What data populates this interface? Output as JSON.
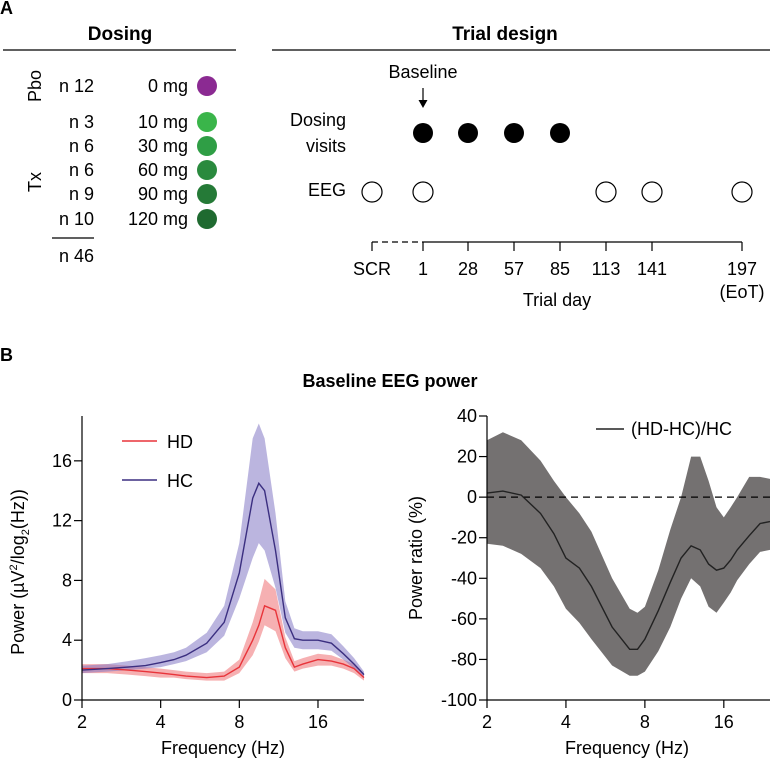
{
  "panel_a": {
    "label": "A",
    "dosing": {
      "title": "Dosing",
      "group_pbo": "Pbo",
      "group_tx": "Tx",
      "rows": [
        {
          "n": "n 12",
          "dose": "0 mg",
          "color": "#8b2a92"
        },
        {
          "n": "n 3",
          "dose": "10 mg",
          "color": "#3ab54a"
        },
        {
          "n": "n 6",
          "dose": "30 mg",
          "color": "#2f9e45"
        },
        {
          "n": "n 6",
          "dose": "60 mg",
          "color": "#2a8a3e"
        },
        {
          "n": "n 9",
          "dose": "90 mg",
          "color": "#257a37"
        },
        {
          "n": "n 10",
          "dose": "120 mg",
          "color": "#1f6a30"
        }
      ],
      "total": "n 46"
    },
    "trial_design": {
      "title": "Trial design",
      "baseline_label": "Baseline",
      "dosing_visits_line1": "Dosing",
      "dosing_visits_line2": "visits",
      "eeg_label": "EEG",
      "days": [
        "SCR",
        "1",
        "28",
        "57",
        "85",
        "113",
        "141",
        "197"
      ],
      "eot_label": "(EoT)",
      "axis_title": "Trial day",
      "dosing_days": [
        "1",
        "28",
        "57",
        "85"
      ],
      "eeg_days": [
        "SCR",
        "1",
        "113",
        "141",
        "197"
      ]
    }
  },
  "panel_b": {
    "label": "B",
    "title": "Baseline EEG power"
  },
  "chart_data": [
    {
      "type": "line",
      "x_scale": "log2",
      "x": [
        2,
        2.5,
        3,
        3.5,
        4,
        4.5,
        5,
        6,
        7,
        8,
        9,
        9.5,
        10,
        11,
        12,
        13,
        14,
        16,
        18,
        20,
        22,
        24
      ],
      "series": [
        {
          "name": "HD",
          "color": "#e8343a",
          "values": [
            2.1,
            2.1,
            2.0,
            1.9,
            1.8,
            1.7,
            1.6,
            1.5,
            1.6,
            2.2,
            4.0,
            5.0,
            6.3,
            6.0,
            3.5,
            2.2,
            2.4,
            2.7,
            2.6,
            2.4,
            2.1,
            1.5
          ],
          "lower": [
            1.8,
            1.8,
            1.7,
            1.6,
            1.5,
            1.5,
            1.4,
            1.3,
            1.3,
            1.8,
            3.0,
            3.9,
            5.0,
            4.6,
            2.8,
            1.9,
            2.1,
            2.3,
            2.3,
            2.1,
            1.8,
            1.3
          ],
          "upper": [
            2.4,
            2.4,
            2.3,
            2.2,
            2.1,
            2.0,
            1.9,
            1.8,
            1.9,
            2.7,
            5.2,
            6.6,
            8.1,
            7.4,
            4.2,
            2.6,
            2.8,
            3.1,
            3.0,
            2.7,
            2.4,
            1.7
          ]
        },
        {
          "name": "HC",
          "color": "#3b2f80",
          "values": [
            2.0,
            2.1,
            2.2,
            2.3,
            2.5,
            2.7,
            3.0,
            3.8,
            5.2,
            8.5,
            13.5,
            14.5,
            14.0,
            10.0,
            5.5,
            4.1,
            4.0,
            4.0,
            3.8,
            3.1,
            2.4,
            1.7
          ],
          "lower": [
            1.8,
            1.9,
            2.0,
            2.1,
            2.2,
            2.4,
            2.6,
            3.2,
            4.3,
            6.8,
            9.5,
            10.5,
            10.0,
            7.5,
            4.5,
            3.5,
            3.4,
            3.4,
            3.3,
            2.7,
            2.1,
            1.5
          ],
          "upper": [
            2.3,
            2.4,
            2.6,
            2.8,
            3.0,
            3.2,
            3.5,
            4.5,
            6.3,
            10.5,
            17.5,
            18.5,
            17.5,
            12.5,
            6.6,
            4.8,
            4.6,
            4.6,
            4.4,
            3.6,
            2.8,
            1.9
          ]
        }
      ],
      "xlabel": "Frequency (Hz)",
      "ylabel_pre": "Power (µV",
      "ylabel_sup1": "2",
      "ylabel_mid": "/log",
      "ylabel_sub": "2",
      "ylabel_post": "(Hz))",
      "xticks": [
        "2",
        "4",
        "8",
        "16"
      ],
      "yticks": [
        "0",
        "4",
        "8",
        "12",
        "16"
      ],
      "xlim": [
        2,
        24
      ],
      "ylim": [
        0,
        19
      ],
      "legend": [
        "HD",
        "HC"
      ]
    },
    {
      "type": "line",
      "x_scale": "log2",
      "x": [
        2,
        2.3,
        2.7,
        3.2,
        3.6,
        4,
        4.5,
        5,
        6,
        7,
        7.5,
        8,
        9,
        10,
        11,
        12,
        13,
        14,
        15,
        16,
        17,
        18,
        20,
        22,
        24
      ],
      "series": [
        {
          "name": "(HD-HC)/HC",
          "color": "#222222",
          "band_color": "#747171",
          "values": [
            2,
            3,
            1,
            -8,
            -18,
            -30,
            -35,
            -44,
            -64,
            -75,
            -75,
            -70,
            -56,
            -42,
            -30,
            -24,
            -26,
            -33,
            -36,
            -35,
            -31,
            -26,
            -19,
            -13,
            -12
          ],
          "lower": [
            -23,
            -24,
            -28,
            -35,
            -44,
            -55,
            -62,
            -70,
            -83,
            -88,
            -88,
            -86,
            -76,
            -64,
            -50,
            -40,
            -44,
            -54,
            -57,
            -52,
            -47,
            -41,
            -33,
            -27,
            -26
          ],
          "upper": [
            28,
            32,
            28,
            18,
            8,
            0,
            -8,
            -17,
            -40,
            -55,
            -57,
            -54,
            -36,
            -16,
            0,
            20,
            20,
            8,
            -5,
            -10,
            -5,
            0,
            10,
            10,
            9
          ]
        }
      ],
      "xlabel": "Frequency (Hz)",
      "ylabel": "Power ratio (%)",
      "xticks": [
        "2",
        "4",
        "8",
        "16"
      ],
      "yticks": [
        "-100",
        "-80",
        "-60",
        "-40",
        "-20",
        "0",
        "20",
        "40"
      ],
      "xlim": [
        2,
        24
      ],
      "ylim": [
        -100,
        40
      ],
      "reference_line": 0,
      "legend": [
        "(HD-HC)/HC"
      ]
    }
  ]
}
